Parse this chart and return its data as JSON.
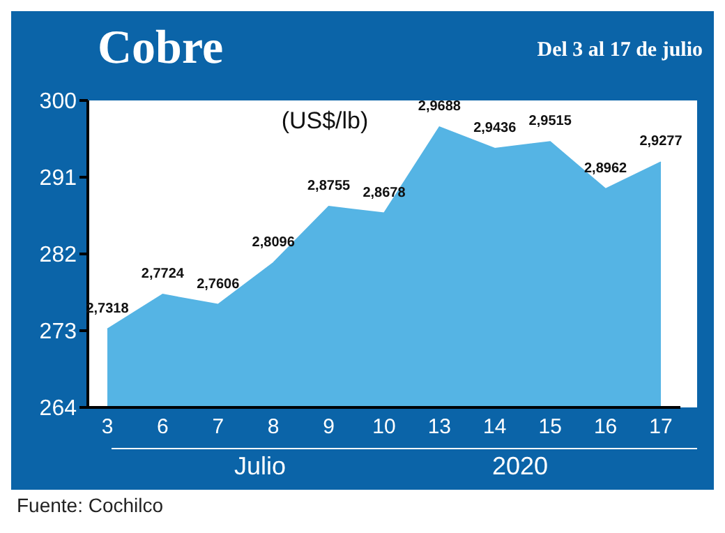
{
  "chart_data": {
    "type": "area",
    "title": "Cobre",
    "subtitle": "Del 3 al 17 de julio",
    "ylabel": "(US$/lb)",
    "xlabel": "Julio",
    "annotations": [
      "2020",
      "Fuente: Cochilco"
    ],
    "categories": [
      "3",
      "6",
      "7",
      "8",
      "9",
      "10",
      "13",
      "14",
      "15",
      "16",
      "17"
    ],
    "series": [
      {
        "color": "#55b4e4",
        "values": [
          273.18,
          277.24,
          276.06,
          280.96,
          287.55,
          286.78,
          296.88,
          294.36,
          295.15,
          289.62,
          292.77
        ],
        "value_labels": [
          "2,7318",
          "2,7724",
          "2,7606",
          "2,8096",
          "2,8755",
          "2,8678",
          "2,9688",
          "2,9436",
          "2,9515",
          "2,8962",
          "2,9277"
        ]
      }
    ],
    "ylim": [
      264,
      300
    ],
    "yticks": [
      264,
      273,
      282,
      291,
      300
    ],
    "grid": false,
    "legend": false
  }
}
